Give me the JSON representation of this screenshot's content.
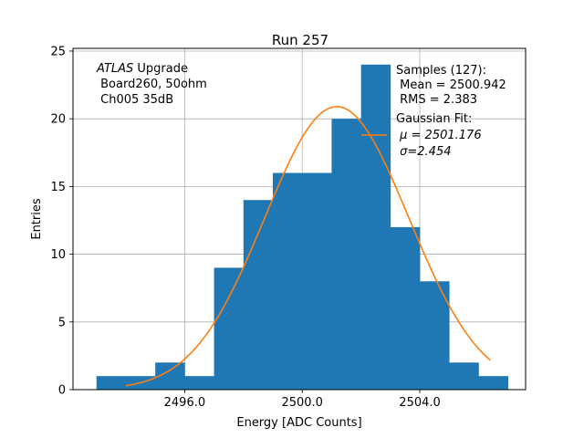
{
  "chart_data": {
    "type": "bar",
    "title": "Run 257",
    "xlabel": "Energy [ADC Counts]",
    "ylabel": "Entries",
    "xlim": [
      2492.2,
      2507.6
    ],
    "ylim": [
      0,
      25.2
    ],
    "xticks": [
      2496.0,
      2500.0,
      2504.0
    ],
    "xtick_labels": [
      "2496.0",
      "2500.0",
      "2504.0"
    ],
    "yticks": [
      0,
      5,
      10,
      15,
      20,
      25
    ],
    "ytick_labels": [
      "0",
      "5",
      "10",
      "15",
      "20",
      "25"
    ],
    "grid": true,
    "histogram": {
      "bin_edges": [
        2493.0,
        2494.0,
        2495.0,
        2496.0,
        2497.0,
        2498.0,
        2499.0,
        2500.0,
        2501.0,
        2502.0,
        2503.0,
        2504.0,
        2505.0,
        2506.0,
        2507.0
      ],
      "counts": [
        1,
        1,
        2,
        1,
        9,
        14,
        16,
        16,
        20,
        24,
        12,
        8,
        2,
        1
      ],
      "color": "#1f77b4"
    },
    "fit": {
      "type": "gaussian",
      "x_range": [
        2494.0,
        2506.4
      ],
      "mu": 2501.176,
      "sigma": 2.454,
      "amplitude": 20.9,
      "color": "#ff7f0e"
    },
    "legend": {
      "placement": "top-right",
      "samples_lines": [
        "Samples (127):",
        " Mean = 2500.942",
        " RMS = 2.383"
      ],
      "fit_lines": [
        "Gaussian Fit:",
        " μ = 2501.176",
        " σ=2.454"
      ]
    },
    "annotation": {
      "atlas": "ATLAS",
      "atlas_suffix": " Upgrade",
      "lines": [
        " Board260, 50ohm",
        " Ch005 35dB"
      ]
    }
  }
}
